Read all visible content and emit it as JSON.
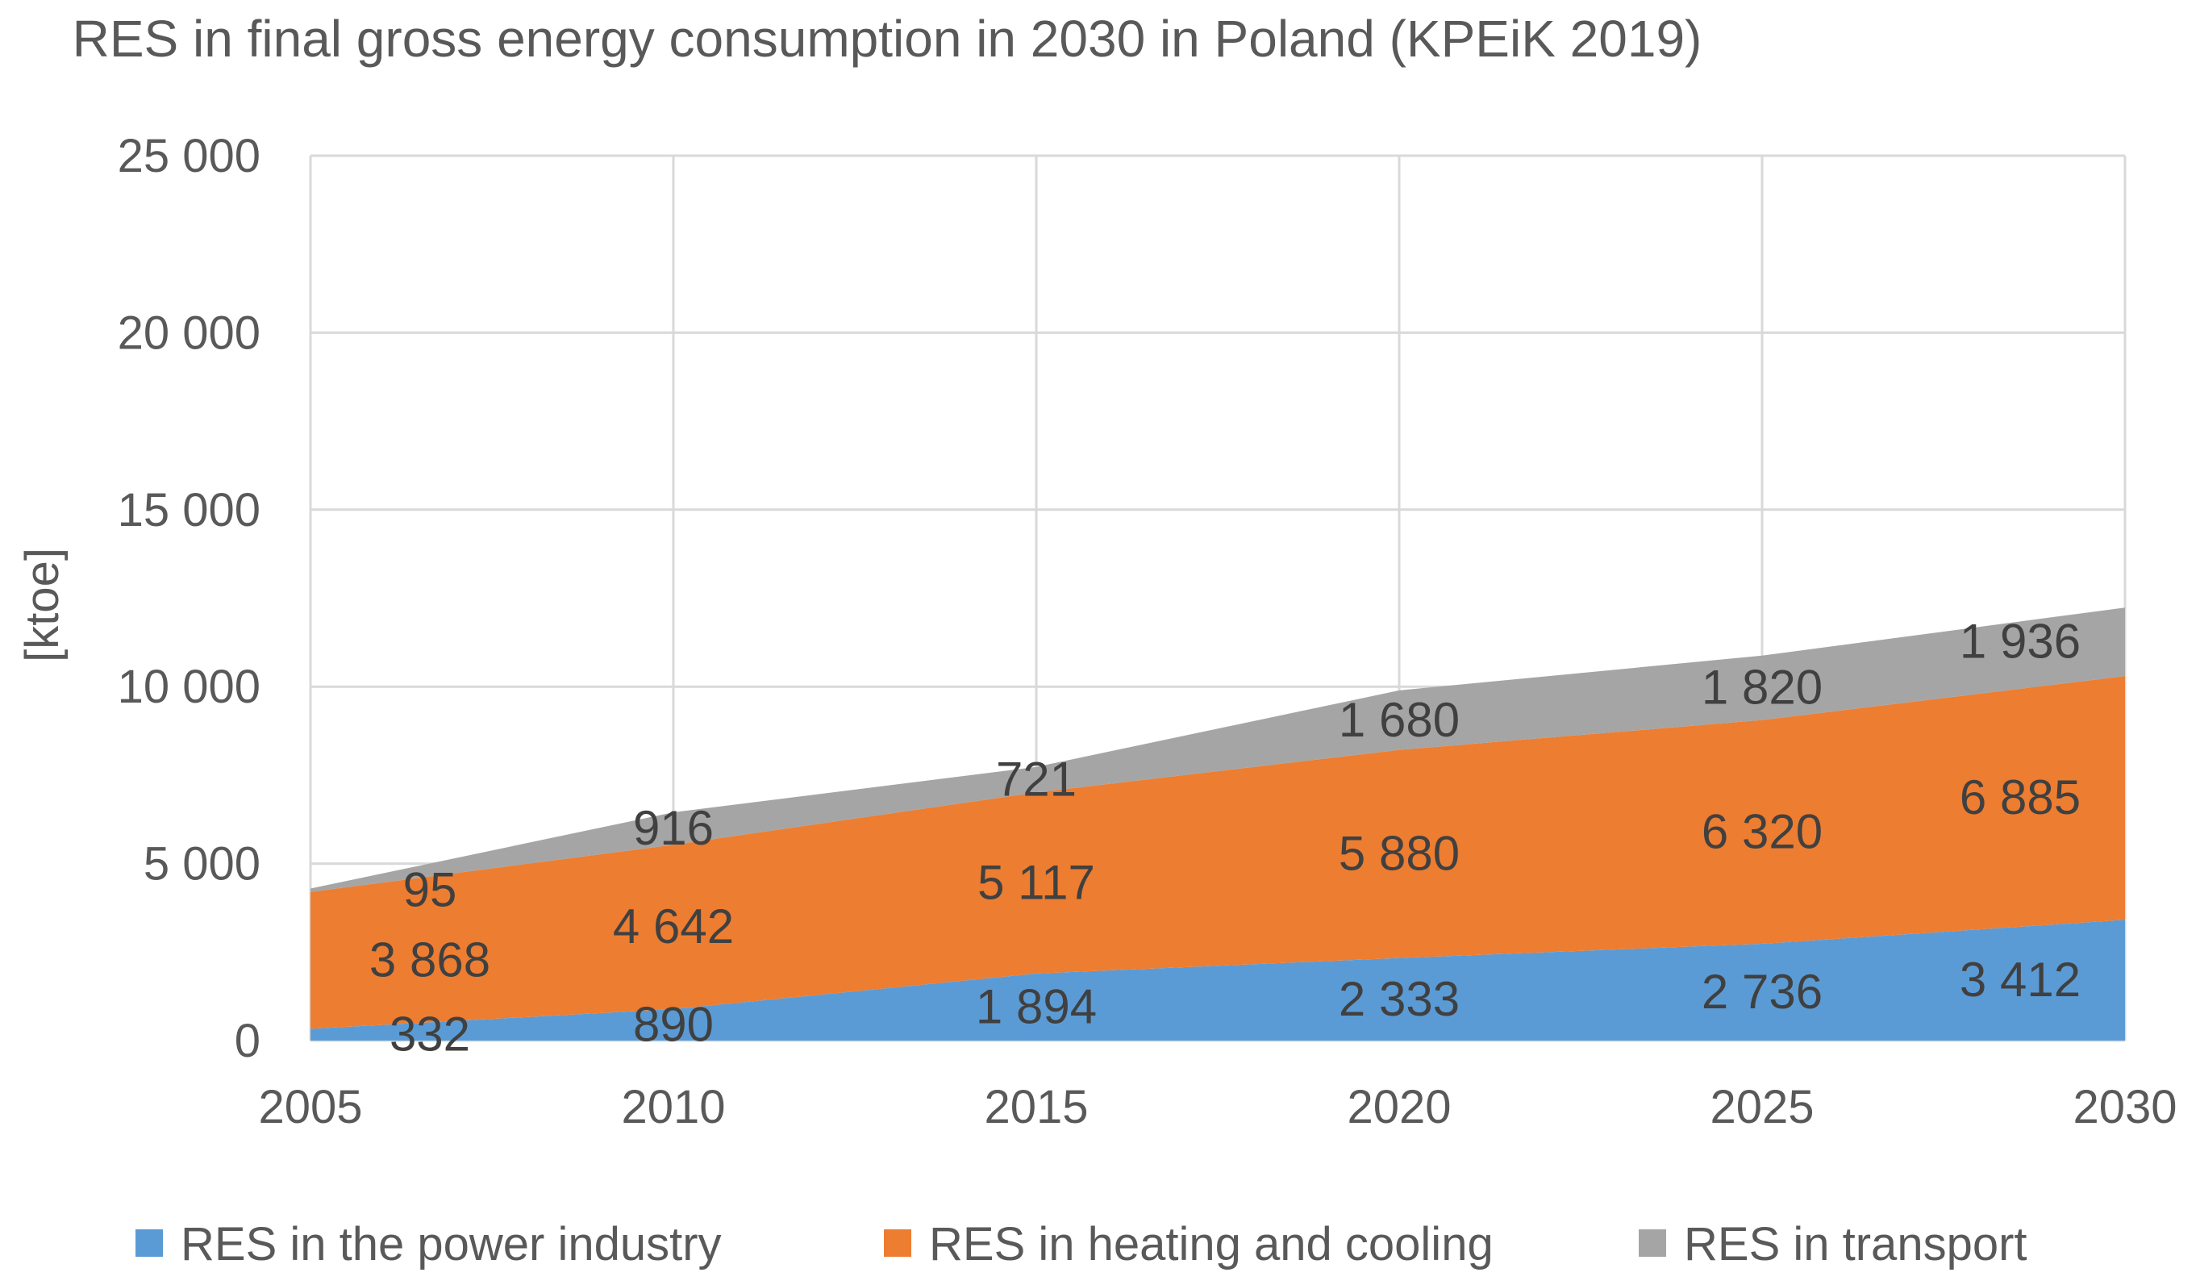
{
  "chart_data": {
    "type": "area",
    "stacked": true,
    "title": "RES in final gross energy consumption in 2030 in Poland (KPEiK 2019)",
    "ylabel": "[ktoe]",
    "xlabel": "",
    "x": [
      2005,
      2010,
      2015,
      2020,
      2025,
      2030
    ],
    "x_tick_labels": [
      "2005",
      "2010",
      "2015",
      "2020",
      "2025",
      "2030"
    ],
    "ylim": [
      0,
      25000
    ],
    "y_tick_labels": [
      "0",
      "5 000",
      "10 000",
      "15 000",
      "20 000",
      "25 000"
    ],
    "grid": true,
    "legend_position": "bottom",
    "series": [
      {
        "name": "RES in the power industry",
        "color": "#5b9bd5",
        "values": [
          332,
          890,
          1894,
          2333,
          2736,
          3412
        ],
        "labels": [
          "332",
          "890",
          "1 894",
          "2 333",
          "2 736",
          "3 412"
        ]
      },
      {
        "name": "RES in heating and cooling",
        "color": "#ed7d31",
        "values": [
          3868,
          4642,
          5117,
          5880,
          6320,
          6885
        ],
        "labels": [
          "3 868",
          "4 642",
          "5 117",
          "5 880",
          "6 320",
          "6 885"
        ]
      },
      {
        "name": "RES in transport",
        "color": "#a5a5a5",
        "values": [
          95,
          916,
          721,
          1680,
          1820,
          1936
        ],
        "labels": [
          "95",
          "916",
          "721",
          "1 680",
          "1 820",
          "1 936"
        ]
      }
    ]
  }
}
